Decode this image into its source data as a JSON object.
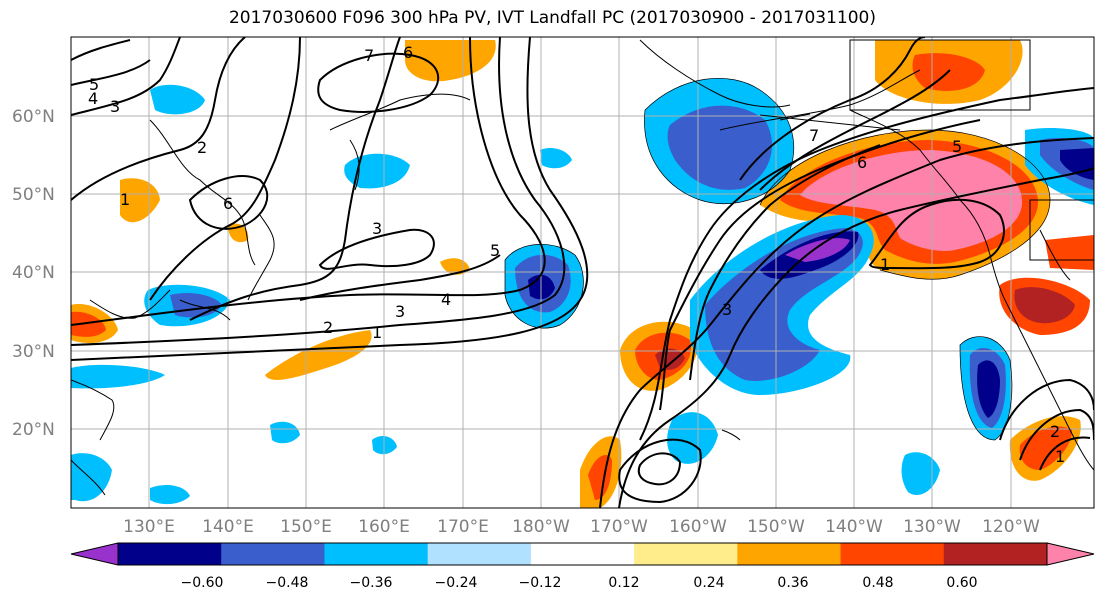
{
  "title": "2017030600 F096 300 hPa PV, IVT Landfall PC (2017030900 - 2017031100)",
  "lat_labels": [
    "60°N",
    "50°N",
    "40°N",
    "30°N",
    "20°N"
  ],
  "lon_labels": [
    "130°E",
    "140°E",
    "150°E",
    "160°E",
    "170°E",
    "180°W",
    "170°W",
    "160°W",
    "150°W",
    "140°W",
    "130°W",
    "120°W"
  ],
  "colorbar": {
    "colors": [
      "#9932cc",
      "#00008b",
      "#3a5fcd",
      "#00bfff",
      "#b0e2ff",
      "#ffffff",
      "#ffec8b",
      "#ffa500",
      "#ff4500",
      "#b22222",
      "#ff82ab"
    ],
    "tick_labels": [
      "−0.60",
      "−0.48",
      "−0.36",
      "−0.24",
      "−0.12",
      "0.12",
      "0.24",
      "0.36",
      "0.48",
      "0.60"
    ]
  },
  "contour_labels": [
    "7",
    "6",
    "5",
    "4",
    "3",
    "2",
    "1",
    "3",
    "4",
    "3",
    "2",
    "1",
    "5",
    "6",
    "7",
    "6",
    "5",
    "1",
    "2",
    "1",
    "3"
  ]
}
